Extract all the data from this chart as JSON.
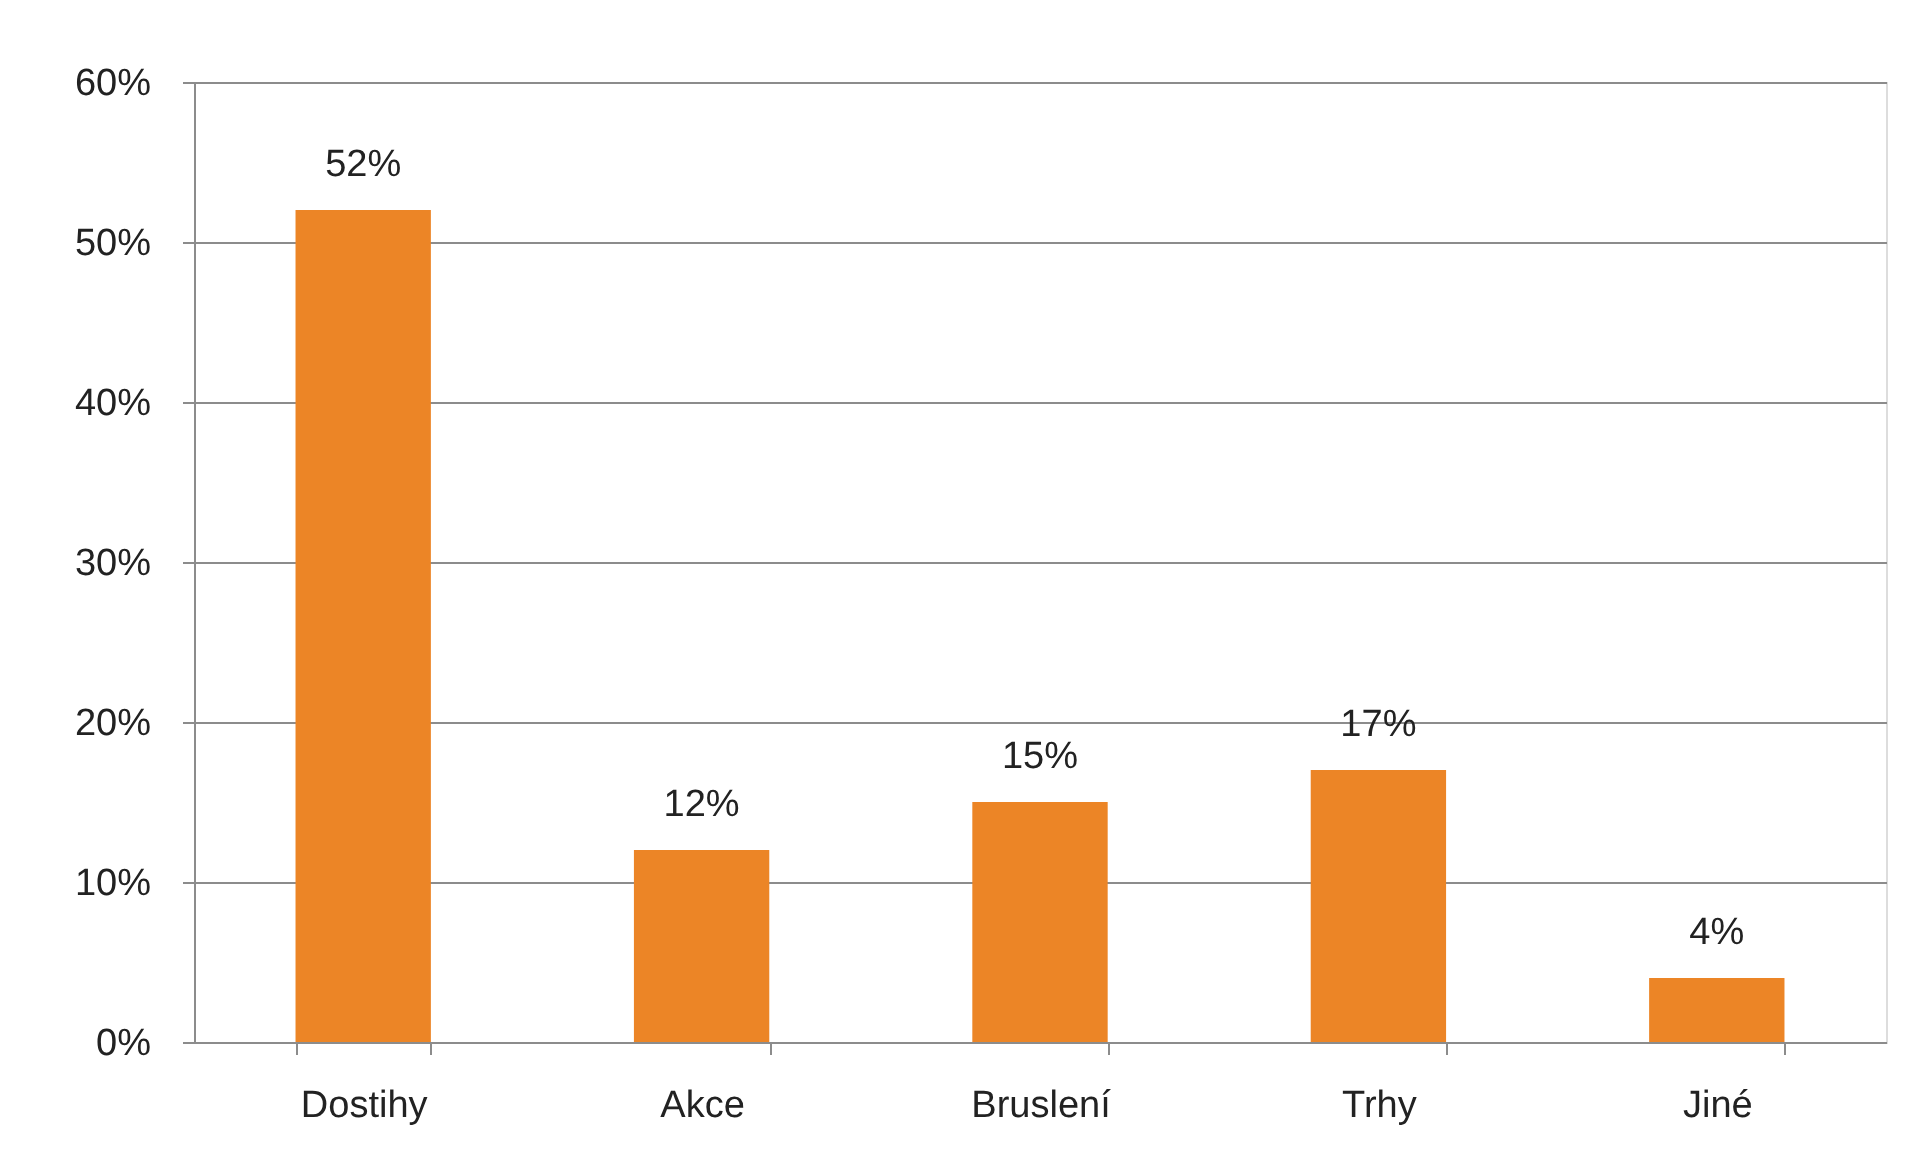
{
  "chart_data": {
    "type": "bar",
    "categories": [
      "Dostihy",
      "Akce",
      "Bruslení",
      "Trhy",
      "Jiné"
    ],
    "values": [
      52,
      12,
      15,
      17,
      4
    ],
    "value_labels": [
      "52%",
      "12%",
      "15%",
      "17%",
      "4%"
    ],
    "color": "#ec8526",
    "ylim": [
      0,
      60
    ],
    "yticks": [
      {
        "value": 0,
        "label": "0%"
      },
      {
        "value": 10,
        "label": "10%"
      },
      {
        "value": 20,
        "label": "20%"
      },
      {
        "value": 30,
        "label": "30%"
      },
      {
        "value": 40,
        "label": "40%"
      },
      {
        "value": 50,
        "label": "50%"
      },
      {
        "value": 60,
        "label": "60%"
      }
    ],
    "grid": "y"
  }
}
